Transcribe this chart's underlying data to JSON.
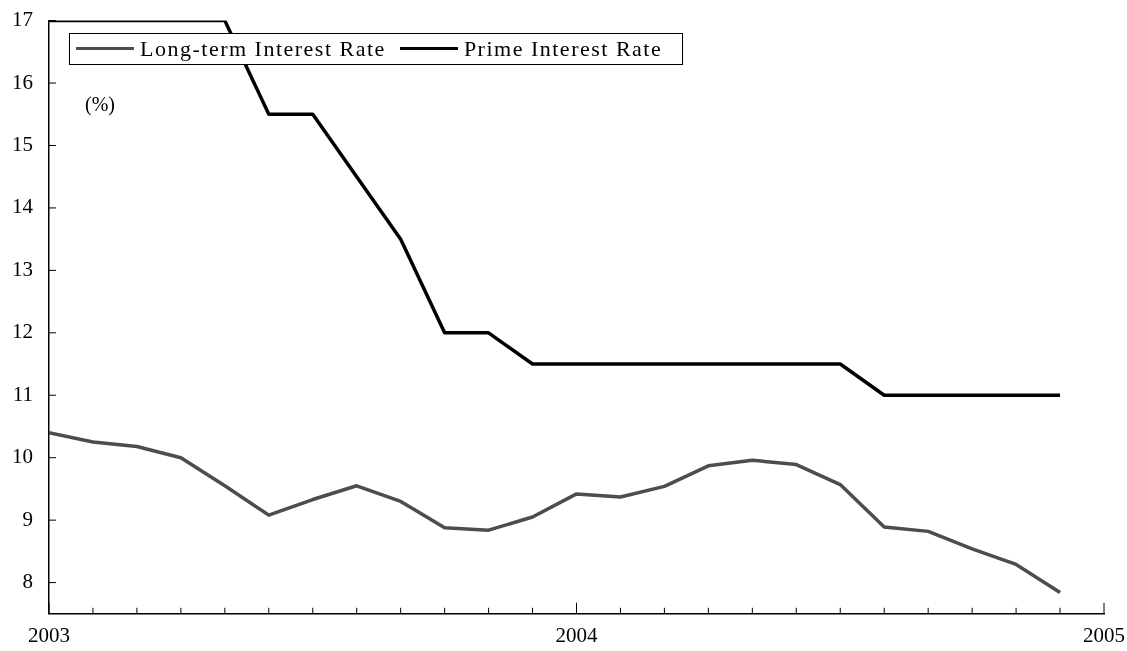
{
  "chart_data": {
    "type": "line",
    "ylabel": "(%)",
    "x": [
      "2003-01",
      "2003-02",
      "2003-03",
      "2003-04",
      "2003-05",
      "2003-06",
      "2003-07",
      "2003-08",
      "2003-09",
      "2003-10",
      "2003-11",
      "2003-12",
      "2004-01",
      "2004-02",
      "2004-03",
      "2004-04",
      "2004-05",
      "2004-06",
      "2004-07",
      "2004-08",
      "2004-09",
      "2004-10",
      "2004-11",
      "2004-12"
    ],
    "series": [
      {
        "name": "Long-term Interest Rate",
        "color": "#4d4d4d",
        "values": [
          10.4,
          10.25,
          10.18,
          10.0,
          9.55,
          9.08,
          9.33,
          9.55,
          9.3,
          8.88,
          8.84,
          9.05,
          9.42,
          9.37,
          9.54,
          9.87,
          9.96,
          9.89,
          9.57,
          8.89,
          8.82,
          8.54,
          8.29,
          7.84
        ]
      },
      {
        "name": "Prime Interest Rate",
        "color": "#000000",
        "values": [
          17,
          17,
          17,
          17,
          17,
          15.5,
          15.5,
          14.5,
          13.5,
          12,
          12,
          11.5,
          11.5,
          11.5,
          11.5,
          11.5,
          11.5,
          11.5,
          11.5,
          11,
          11,
          11,
          11,
          11
        ]
      }
    ],
    "xlim": [
      "2003-01",
      "2005-01"
    ],
    "xticks": [
      {
        "value": "2003-01",
        "label": "2003"
      },
      {
        "value": "2003-02",
        "label": null
      },
      {
        "value": "2003-03",
        "label": null
      },
      {
        "value": "2003-04",
        "label": null
      },
      {
        "value": "2003-05",
        "label": null
      },
      {
        "value": "2003-06",
        "label": null
      },
      {
        "value": "2003-07",
        "label": null
      },
      {
        "value": "2003-08",
        "label": null
      },
      {
        "value": "2003-09",
        "label": null
      },
      {
        "value": "2003-10",
        "label": null
      },
      {
        "value": "2003-11",
        "label": null
      },
      {
        "value": "2003-12",
        "label": null
      },
      {
        "value": "2004-01",
        "label": "2004"
      },
      {
        "value": "2004-02",
        "label": null
      },
      {
        "value": "2004-03",
        "label": null
      },
      {
        "value": "2004-04",
        "label": null
      },
      {
        "value": "2004-05",
        "label": null
      },
      {
        "value": "2004-06",
        "label": null
      },
      {
        "value": "2004-07",
        "label": null
      },
      {
        "value": "2004-08",
        "label": null
      },
      {
        "value": "2004-09",
        "label": null
      },
      {
        "value": "2004-10",
        "label": null
      },
      {
        "value": "2004-11",
        "label": null
      },
      {
        "value": "2004-12",
        "label": null
      },
      {
        "value": "2005-01",
        "label": "2005"
      }
    ],
    "ylim": [
      7.5,
      17
    ],
    "yticks": [
      8,
      9,
      10,
      11,
      12,
      13,
      14,
      15,
      16,
      17
    ],
    "grid": false,
    "legend": "top left",
    "marker": "none",
    "line_style": "solid"
  }
}
